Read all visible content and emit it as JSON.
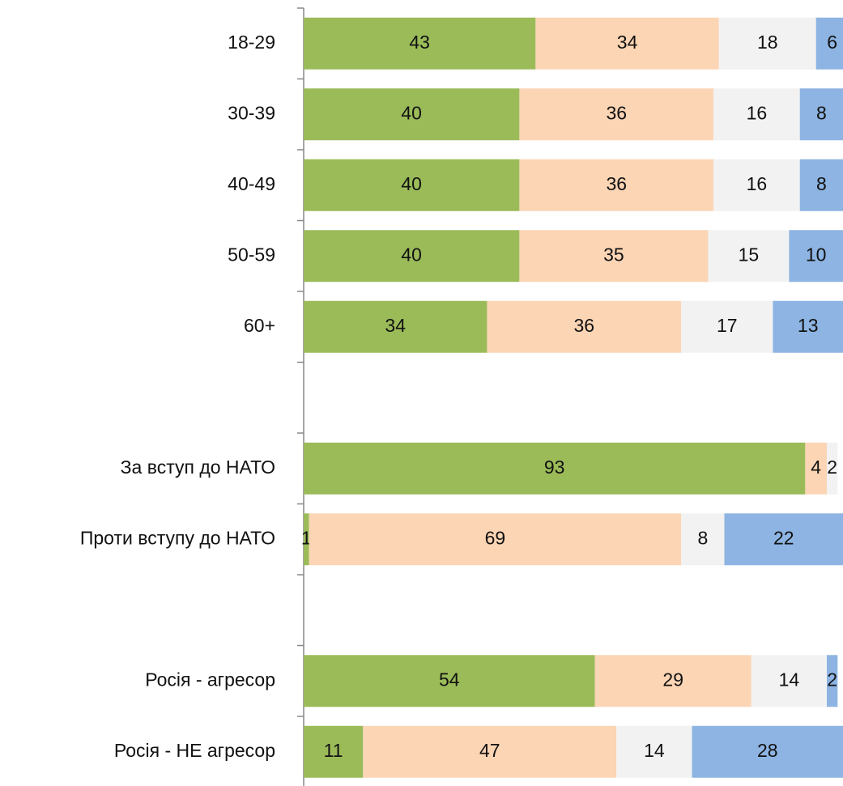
{
  "chart_data": {
    "type": "stacked-hbar",
    "categories": [
      "18-29",
      "30-39",
      "40-49",
      "50-59",
      "60+",
      null,
      "За вступ до НАТО",
      "Проти вступу до НАТО",
      null,
      "Росія - агресор",
      "Росія - НЕ агресор"
    ],
    "series": [
      {
        "color": "#9bbb59",
        "values": [
          43,
          40,
          40,
          40,
          34,
          null,
          93,
          1,
          null,
          54,
          11
        ]
      },
      {
        "color": "#fcd5b5",
        "values": [
          34,
          36,
          36,
          35,
          36,
          null,
          4,
          69,
          null,
          29,
          47
        ]
      },
      {
        "color": "#f2f2f2",
        "values": [
          18,
          16,
          16,
          15,
          17,
          null,
          2,
          8,
          null,
          14,
          14
        ]
      },
      {
        "color": "#8db4e2",
        "values": [
          6,
          8,
          8,
          10,
          13,
          null,
          null,
          22,
          null,
          2,
          28
        ]
      }
    ],
    "xlim": [
      0,
      100
    ]
  }
}
